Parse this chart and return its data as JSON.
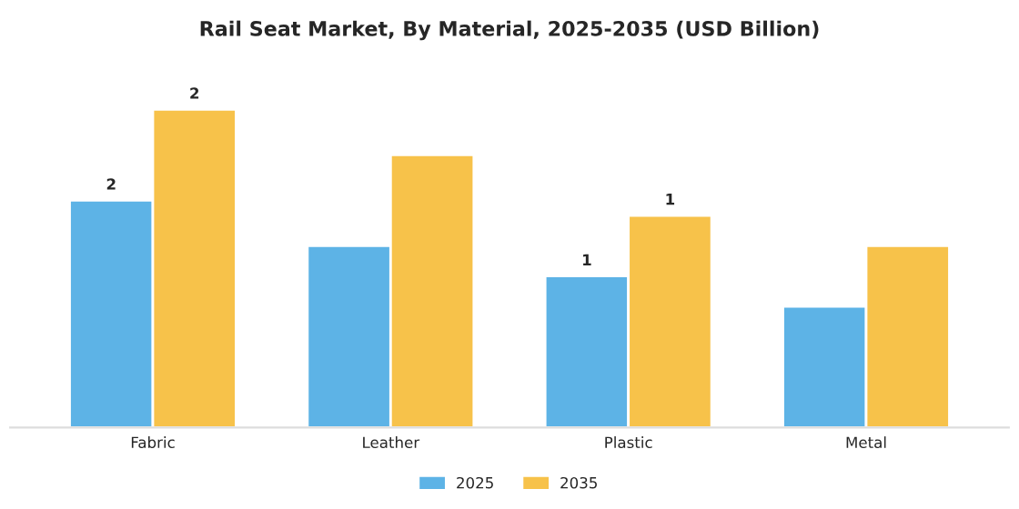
{
  "chart_data": {
    "type": "bar",
    "title": "Rail Seat Market, By Material, 2025-2035 (USD Billion)",
    "categories": [
      "Fabric",
      "Leather",
      "Plastic",
      "Metal"
    ],
    "legend": "bottom",
    "grid": false,
    "tick_labels": "x",
    "series": [
      {
        "name": "2025",
        "color": "#5db3e6",
        "values": [
          1.5,
          1.2,
          1.0,
          0.8
        ],
        "value_labels": [
          "2",
          null,
          "1",
          null
        ]
      },
      {
        "name": "2035",
        "color": "#f7c24a",
        "values": [
          2.1,
          1.8,
          1.4,
          1.2
        ],
        "value_labels": [
          "2",
          null,
          "1",
          null
        ]
      }
    ]
  }
}
